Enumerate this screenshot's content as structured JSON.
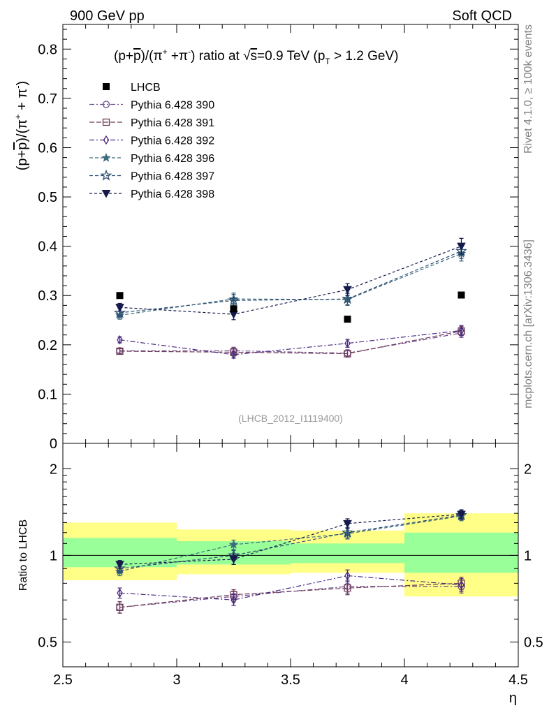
{
  "header": {
    "left": "900 GeV pp",
    "right": "Soft QCD"
  },
  "side_labels": {
    "rivet": "Rivet 4.1.0, ≥ 100k events",
    "mcplots": "mcplots.cern.ch [arXiv:1306.3436]"
  },
  "chart_data": [
    {
      "panel": "main",
      "type": "scatter",
      "title": "(p+p̅)/(π⁺+π⁻) ratio at √s=0.9 TeV (p_T > 1.2 GeV)",
      "title_parts": {
        "prefix": "(p+",
        "pbar": "p",
        "mid": ")/(π",
        "sup1": "+",
        "plus": " +π",
        "sup2": "-",
        "ratio": ") ratio at ",
        "sqrt": "√",
        "s": "s",
        "energy": "=0.9 TeV (p",
        "sub": "T",
        "cut": " > 1.2 GeV)"
      },
      "ylabel_parts": {
        "prefix": "(p+",
        "pbar": "p",
        "mid": ")/(π",
        "sup1": "+",
        "plus": " + π",
        "sup2": "-",
        "end": ")"
      },
      "watermark": "(LHCB_2012_I1119400)",
      "xlim": [
        2.5,
        4.5
      ],
      "ylim": [
        0,
        0.85
      ],
      "yticks": [
        0,
        0.1,
        0.2,
        0.3,
        0.4,
        0.5,
        0.6,
        0.7,
        0.8
      ],
      "ytick_labels": [
        "0",
        "0.1",
        "0.2",
        "0.3",
        "0.4",
        "0.5",
        "0.6",
        "0.7",
        "0.8"
      ],
      "x": [
        2.75,
        3.25,
        3.75,
        4.25
      ],
      "data": {
        "name": "LHCB",
        "values": [
          0.3,
          0.273,
          0.252,
          0.301
        ],
        "color": "#000000"
      },
      "series": [
        {
          "name": "Pythia 6.428 390",
          "values": [
            0.188,
            0.188,
            0.183,
            0.224
          ],
          "err": [
            0.005,
            0.007,
            0.007,
            0.009
          ],
          "color": "#6b4a8c",
          "marker": "circle",
          "dash": "7 3 2 3"
        },
        {
          "name": "Pythia 6.428 391",
          "values": [
            0.187,
            0.185,
            0.182,
            0.228
          ],
          "err": [
            0.005,
            0.007,
            0.007,
            0.009
          ],
          "color": "#6e3b58",
          "marker": "square",
          "dash": "7 3"
        },
        {
          "name": "Pythia 6.428 392",
          "values": [
            0.21,
            0.18,
            0.203,
            0.229
          ],
          "err": [
            0.006,
            0.007,
            0.008,
            0.01
          ],
          "color": "#4a2a80",
          "marker": "diamond",
          "dash": "7 3 2 3"
        },
        {
          "name": "Pythia 6.428 396",
          "values": [
            0.26,
            0.293,
            0.292,
            0.385
          ],
          "err": [
            0.008,
            0.012,
            0.012,
            0.015
          ],
          "color": "#3e6a7e",
          "marker": "star-filled",
          "dash": "5 3"
        },
        {
          "name": "Pythia 6.428 397",
          "values": [
            0.265,
            0.29,
            0.293,
            0.39
          ],
          "err": [
            0.008,
            0.012,
            0.012,
            0.015
          ],
          "color": "#2e4e72",
          "marker": "star-open",
          "dash": "5 3"
        },
        {
          "name": "Pythia 6.428 398",
          "values": [
            0.276,
            0.262,
            0.312,
            0.4
          ],
          "err": [
            0.008,
            0.011,
            0.012,
            0.016
          ],
          "color": "#151a4a",
          "marker": "triangle-down",
          "dash": "4 3"
        }
      ]
    },
    {
      "panel": "ratio",
      "type": "scatter",
      "ylabel": "Ratio to LHCB",
      "xlabel": "η",
      "xlim": [
        2.5,
        4.5
      ],
      "ylim": [
        0.4,
        2.4
      ],
      "log_y": true,
      "xticks": [
        2.5,
        3,
        3.5,
        4,
        4.5
      ],
      "xtick_labels": [
        "2.5",
        "3",
        "3.5",
        "4",
        "4.5"
      ],
      "yticks": [
        0.5,
        1,
        2
      ],
      "ytick_labels": [
        "0.5",
        "1",
        "2"
      ],
      "bins": [
        [
          2.5,
          3.0
        ],
        [
          3.0,
          3.5
        ],
        [
          3.5,
          4.0
        ],
        [
          4.0,
          4.5
        ]
      ],
      "band_inner": [
        [
          0.91,
          1.15
        ],
        [
          0.93,
          1.12
        ],
        [
          0.94,
          1.1
        ],
        [
          0.87,
          1.2
        ]
      ],
      "band_outer": [
        [
          0.82,
          1.3
        ],
        [
          0.86,
          1.23
        ],
        [
          0.87,
          1.22
        ],
        [
          0.72,
          1.4
        ]
      ],
      "inner_color": "#99ff99",
      "outer_color": "#ffff88",
      "x": [
        2.75,
        3.25,
        3.75,
        4.25
      ],
      "series": [
        {
          "name": "Pythia 6.428 390",
          "values": [
            0.66,
            0.72,
            0.78,
            0.78
          ],
          "err": [
            0.03,
            0.03,
            0.04,
            0.04
          ],
          "color": "#6b4a8c",
          "marker": "circle",
          "dash": "7 3 2 3"
        },
        {
          "name": "Pythia 6.428 391",
          "values": [
            0.66,
            0.73,
            0.77,
            0.8
          ],
          "err": [
            0.03,
            0.03,
            0.04,
            0.04
          ],
          "color": "#6e3b58",
          "marker": "square",
          "dash": "7 3"
        },
        {
          "name": "Pythia 6.428 392",
          "values": [
            0.74,
            0.7,
            0.85,
            0.79
          ],
          "err": [
            0.03,
            0.03,
            0.04,
            0.04
          ],
          "color": "#4a2a80",
          "marker": "diamond",
          "dash": "7 3 2 3"
        },
        {
          "name": "Pythia 6.428 396",
          "values": [
            0.88,
            1.09,
            1.19,
            1.37
          ],
          "err": [
            0.03,
            0.04,
            0.05,
            0.05
          ],
          "color": "#3e6a7e",
          "marker": "star-filled",
          "dash": "5 3"
        },
        {
          "name": "Pythia 6.428 397",
          "values": [
            0.9,
            1.0,
            1.2,
            1.38
          ],
          "err": [
            0.03,
            0.04,
            0.05,
            0.05
          ],
          "color": "#2e4e72",
          "marker": "star-open",
          "dash": "5 3"
        },
        {
          "name": "Pythia 6.428 398",
          "values": [
            0.93,
            0.97,
            1.29,
            1.39
          ],
          "err": [
            0.03,
            0.04,
            0.05,
            0.05
          ],
          "color": "#151a4a",
          "marker": "triangle-down",
          "dash": "4 3"
        }
      ]
    }
  ]
}
